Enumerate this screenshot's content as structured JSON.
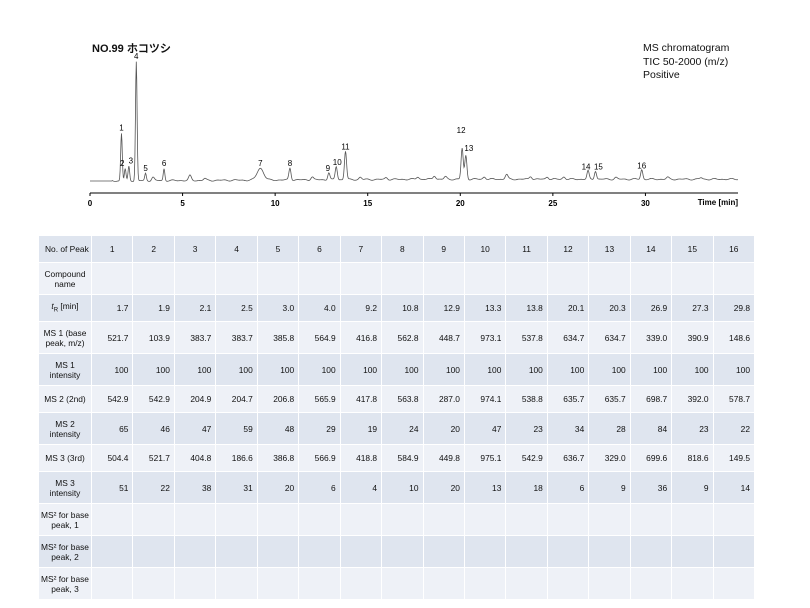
{
  "title": "NO.99 ホコツシ",
  "info_lines": [
    "MS chromatogram",
    "TIC 50-2000 (m/z)",
    "Positive"
  ],
  "chart_data": {
    "type": "line",
    "title": "NO.99 ホコツシ",
    "xlabel": "Time [min]",
    "ylabel": "",
    "xlim": [
      0,
      35
    ],
    "x_ticks": [
      0,
      5,
      10,
      15,
      20,
      25,
      30
    ],
    "grid": false,
    "peaks": [
      {
        "label": "1",
        "rt": 1.7,
        "height": 0.4
      },
      {
        "label": "2",
        "rt": 1.9,
        "height": 0.1
      },
      {
        "label": "3",
        "rt": 2.1,
        "height": 0.12
      },
      {
        "label": "4",
        "rt": 2.5,
        "height": 1.0
      },
      {
        "label": "5",
        "rt": 3.0,
        "height": 0.06
      },
      {
        "label": "6",
        "rt": 4.0,
        "height": 0.1
      },
      {
        "label": "7",
        "rt": 9.2,
        "height": 0.1
      },
      {
        "label": "8",
        "rt": 10.8,
        "height": 0.1
      },
      {
        "label": "9",
        "rt": 12.9,
        "height": 0.06
      },
      {
        "label": "10",
        "rt": 13.3,
        "height": 0.11
      },
      {
        "label": "11",
        "rt": 13.8,
        "height": 0.24
      },
      {
        "label": "12",
        "rt": 20.1,
        "height": 0.26
      },
      {
        "label": "13",
        "rt": 20.3,
        "height": 0.2
      },
      {
        "label": "14",
        "rt": 26.9,
        "height": 0.07
      },
      {
        "label": "15",
        "rt": 27.3,
        "height": 0.07
      },
      {
        "label": "16",
        "rt": 29.8,
        "height": 0.08
      }
    ]
  },
  "table": {
    "header_label": "No. of Peak",
    "peak_numbers": [
      "1",
      "2",
      "3",
      "4",
      "5",
      "6",
      "7",
      "8",
      "9",
      "10",
      "11",
      "12",
      "13",
      "14",
      "15",
      "16"
    ],
    "rows": [
      {
        "label": "Compound name",
        "values": [
          "",
          "",
          "",
          "",
          "",
          "",
          "",
          "",
          "",
          "",
          "",
          "",
          "",
          "",
          "",
          ""
        ]
      },
      {
        "label": "tR [min]",
        "values": [
          "1.7",
          "1.9",
          "2.1",
          "2.5",
          "3.0",
          "4.0",
          "9.2",
          "10.8",
          "12.9",
          "13.3",
          "13.8",
          "20.1",
          "20.3",
          "26.9",
          "27.3",
          "29.8"
        ]
      },
      {
        "label": "MS 1 (base peak, m/z)",
        "values": [
          "521.7",
          "103.9",
          "383.7",
          "383.7",
          "385.8",
          "564.9",
          "416.8",
          "562.8",
          "448.7",
          "973.1",
          "537.8",
          "634.7",
          "634.7",
          "339.0",
          "390.9",
          "148.6"
        ]
      },
      {
        "label": "MS 1 intensity",
        "values": [
          "100",
          "100",
          "100",
          "100",
          "100",
          "100",
          "100",
          "100",
          "100",
          "100",
          "100",
          "100",
          "100",
          "100",
          "100",
          "100"
        ]
      },
      {
        "label": "MS 2 (2nd)",
        "values": [
          "542.9",
          "542.9",
          "204.9",
          "204.7",
          "206.8",
          "565.9",
          "417.8",
          "563.8",
          "287.0",
          "974.1",
          "538.8",
          "635.7",
          "635.7",
          "698.7",
          "392.0",
          "578.7"
        ]
      },
      {
        "label": "MS 2 intensity",
        "values": [
          "65",
          "46",
          "47",
          "59",
          "48",
          "29",
          "19",
          "24",
          "20",
          "47",
          "23",
          "34",
          "28",
          "84",
          "23",
          "22"
        ]
      },
      {
        "label": "MS 3 (3rd)",
        "values": [
          "504.4",
          "521.7",
          "404.8",
          "186.6",
          "386.8",
          "566.9",
          "418.8",
          "584.9",
          "449.8",
          "975.1",
          "542.9",
          "636.7",
          "329.0",
          "699.6",
          "818.6",
          "149.5"
        ]
      },
      {
        "label": "MS 3 intensity",
        "values": [
          "51",
          "22",
          "38",
          "31",
          "20",
          "6",
          "4",
          "10",
          "20",
          "13",
          "18",
          "6",
          "9",
          "36",
          "9",
          "14"
        ]
      },
      {
        "label": "MS² for base peak, 1",
        "values": [
          "",
          "",
          "",
          "",
          "",
          "",
          "",
          "",
          "",
          "",
          "",
          "",
          "",
          "",
          "",
          ""
        ]
      },
      {
        "label": "MS² for base peak, 2",
        "values": [
          "",
          "",
          "",
          "",
          "",
          "",
          "",
          "",
          "",
          "",
          "",
          "",
          "",
          "",
          "",
          ""
        ]
      },
      {
        "label": "MS² for base peak, 3",
        "values": [
          "",
          "",
          "",
          "",
          "",
          "",
          "",
          "",
          "",
          "",
          "",
          "",
          "",
          "",
          "",
          ""
        ]
      }
    ]
  }
}
